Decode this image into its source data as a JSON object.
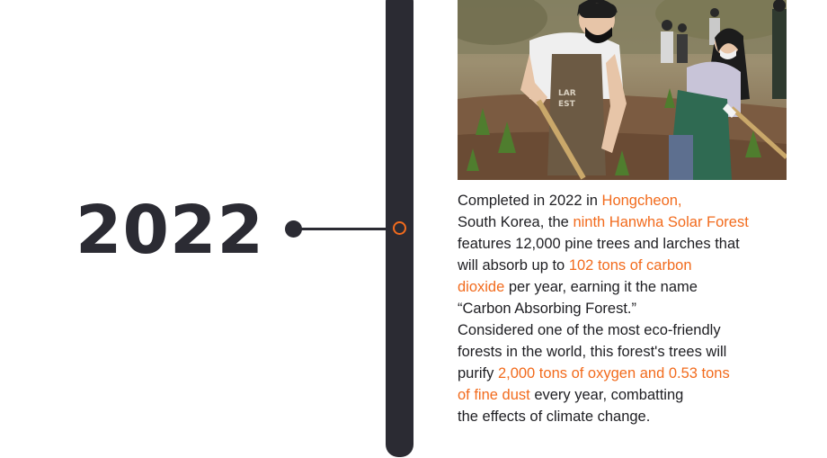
{
  "year": "2022",
  "colors": {
    "accent": "#f26b1d",
    "dark": "#2b2b33"
  },
  "photo": {
    "apron_text_line1": "LAR",
    "apron_text_line2": "EST"
  },
  "description": {
    "lines": [
      [
        {
          "text": "Completed in 2022 in ",
          "hl": false
        },
        {
          "text": "Hongcheon,",
          "hl": true
        }
      ],
      [
        {
          "text": "South Korea, the ",
          "hl": false
        },
        {
          "text": "ninth Hanwha Solar Forest",
          "hl": true
        }
      ],
      [
        {
          "text": "features 12,000 pine trees and larches that",
          "hl": false
        }
      ],
      [
        {
          "text": "will absorb up to ",
          "hl": false
        },
        {
          "text": "102 tons of carbon",
          "hl": true
        }
      ],
      [
        {
          "text": "dioxide",
          "hl": true
        },
        {
          "text": " per year, earning it the name",
          "hl": false
        }
      ],
      [
        {
          "text": "“Carbon Absorbing Forest.”",
          "hl": false
        }
      ],
      [
        {
          "text": "Considered one of the most eco-friendly",
          "hl": false
        }
      ],
      [
        {
          "text": "forests in the world, this forest's trees will",
          "hl": false
        }
      ],
      [
        {
          "text": "purify ",
          "hl": false
        },
        {
          "text": "2,000 tons of oxygen and 0.53 tons",
          "hl": true
        }
      ],
      [
        {
          "text": "of fine dust",
          "hl": true
        },
        {
          "text": " every year, combatting",
          "hl": false
        }
      ],
      [
        {
          "text": "the effects of climate change.",
          "hl": false
        }
      ]
    ]
  }
}
